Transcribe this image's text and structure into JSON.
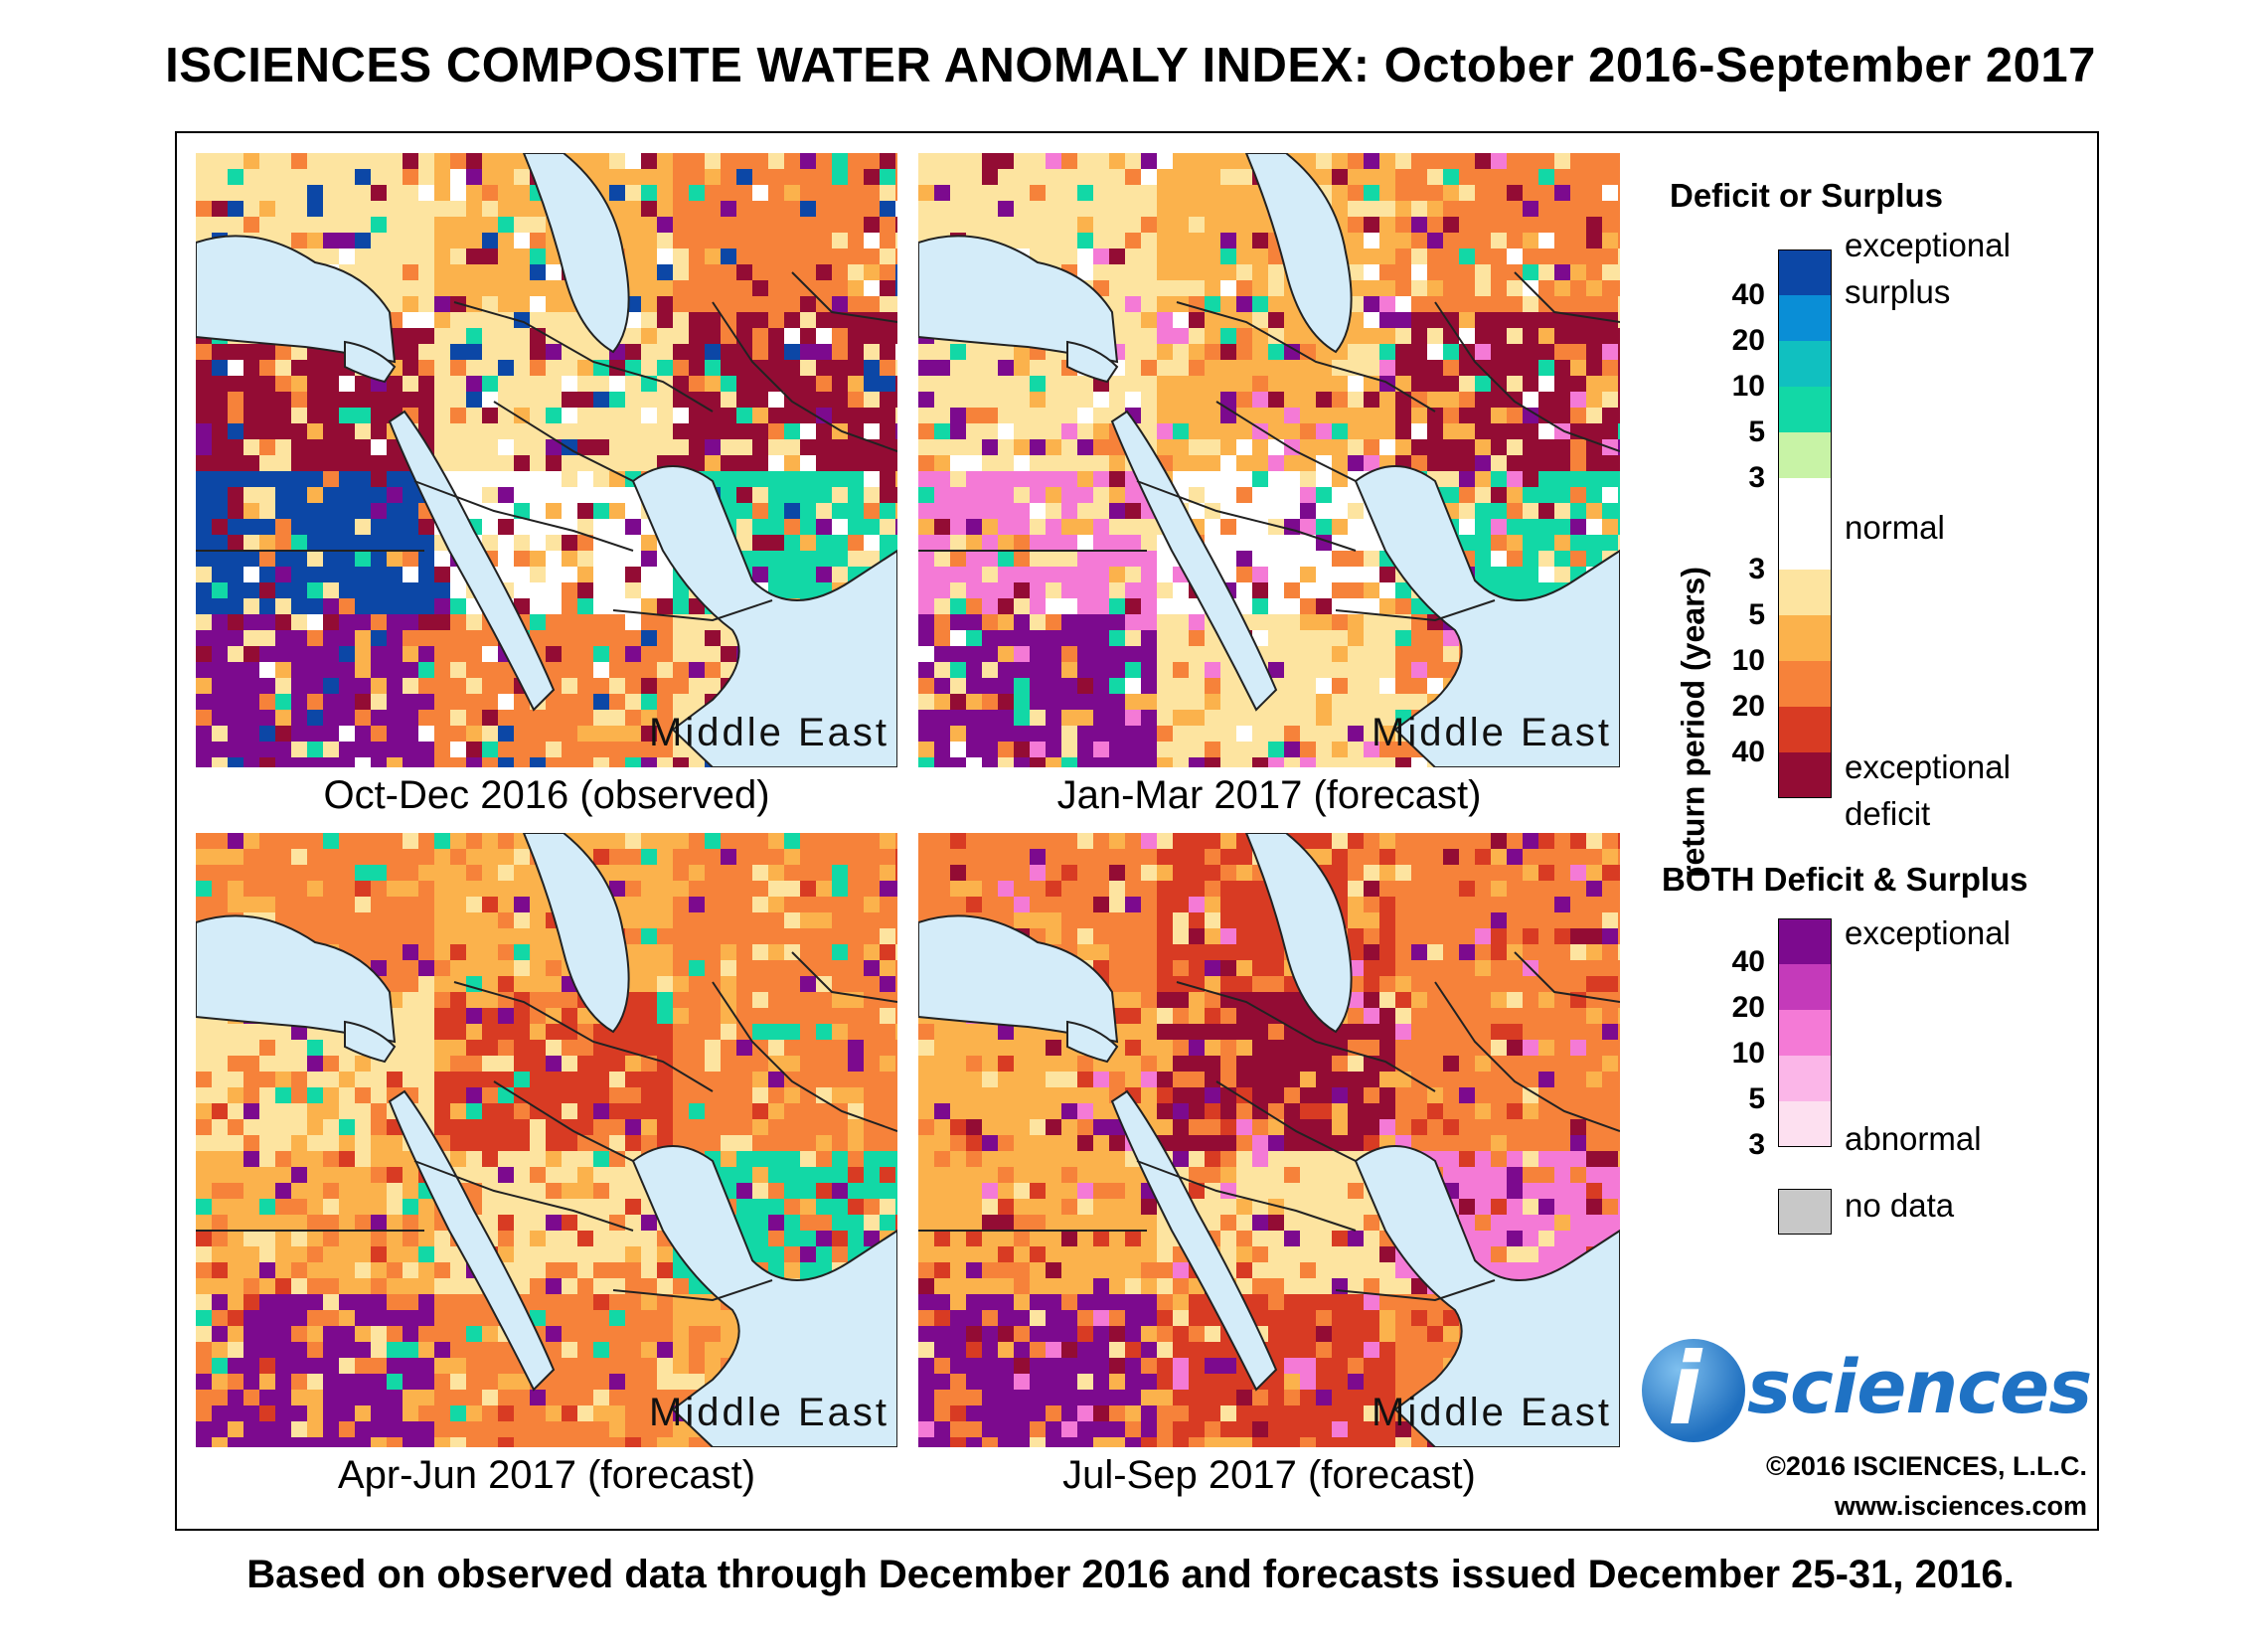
{
  "title": "ISCIENCES COMPOSITE WATER ANOMALY INDEX: October 2016-September 2017",
  "footer": "Based on observed data through December 2016 and forecasts issued December 25-31, 2016.",
  "colors": {
    "water": "#d4ecf9",
    "land_default": "#fde4a0",
    "border": "#222222",
    "deficit": [
      "#fde4a0",
      "#fbb24c",
      "#f6823a",
      "#d83b23",
      "#930c34"
    ],
    "surplus": [
      "#c8f3a6",
      "#12d8a6",
      "#10c0c0",
      "#0a8ed6",
      "#0c47a6"
    ],
    "both": [
      "#fde0f0",
      "#fbb6e8",
      "#f47ad6",
      "#c43aba",
      "#7c0a8e"
    ],
    "no_data": "#c8c8c8"
  },
  "panels": [
    {
      "caption": "Oct-Dec 2016 (observed)",
      "region": "Middle East",
      "palette": [
        "#fde4a0",
        "#fbb24c",
        "#f6823a",
        "#930c34",
        "#fde4a0",
        "#930c34",
        "#0c47a6",
        "#ffffff",
        "#12d8a6",
        "#7c0a8e",
        "#f6823a",
        "#fde4a0"
      ]
    },
    {
      "caption": "Jan-Mar 2017 (forecast)",
      "region": "Middle East",
      "palette": [
        "#fde4a0",
        "#fbb24c",
        "#f6823a",
        "#fde4a0",
        "#fbb24c",
        "#930c34",
        "#f47ad6",
        "#ffffff",
        "#12d8a6",
        "#7c0a8e",
        "#fde4a0",
        "#f6823a"
      ]
    },
    {
      "caption": "Apr-Jun 2017 (forecast)",
      "region": "Middle East",
      "palette": [
        "#f6823a",
        "#fbb24c",
        "#f6823a",
        "#fde4a0",
        "#d83b23",
        "#f6823a",
        "#fbb24c",
        "#fde4a0",
        "#12d8a6",
        "#7c0a8e",
        "#f6823a",
        "#fbb24c"
      ]
    },
    {
      "caption": "Jul-Sep 2017 (forecast)",
      "region": "Middle East",
      "palette": [
        "#f6823a",
        "#d83b23",
        "#f6823a",
        "#fbb24c",
        "#930c34",
        "#f6823a",
        "#fbb24c",
        "#fde4a0",
        "#f47ad6",
        "#7c0a8e",
        "#d83b23",
        "#f6823a"
      ]
    }
  ],
  "legend": {
    "deficit_surplus_title": "Deficit or Surplus",
    "both_title": "BOTH Deficit & Surplus",
    "axis_label": "return period (years)",
    "labels": {
      "exceptional_surplus_1": "exceptional",
      "exceptional_surplus_2": "surplus",
      "normal": "normal",
      "exceptional_deficit_1": "exceptional",
      "exceptional_deficit_2": "deficit",
      "both_exceptional": "exceptional",
      "both_abnormal": "abnormal",
      "no_data": "no data"
    },
    "surplus_ticks": [
      "40",
      "20",
      "10",
      "5",
      "3"
    ],
    "deficit_ticks": [
      "3",
      "5",
      "10",
      "20",
      "40"
    ],
    "both_ticks": [
      "40",
      "20",
      "10",
      "5",
      "3"
    ],
    "scale_colors": [
      "#0c47a6",
      "#0a8ed6",
      "#10c0c0",
      "#12d8a6",
      "#c8f3a6",
      "#ffffff",
      "#ffffff",
      "#fde4a0",
      "#fbb24c",
      "#f6823a",
      "#d83b23",
      "#930c34"
    ],
    "both_colors": [
      "#7c0a8e",
      "#c43aba",
      "#f47ad6",
      "#fbb6e8",
      "#fde0f0"
    ]
  },
  "logo": {
    "letter": "i",
    "word": "sciences"
  },
  "copyright": "©2016 ISCIENCES, L.L.C.",
  "website": "www.isciences.com"
}
